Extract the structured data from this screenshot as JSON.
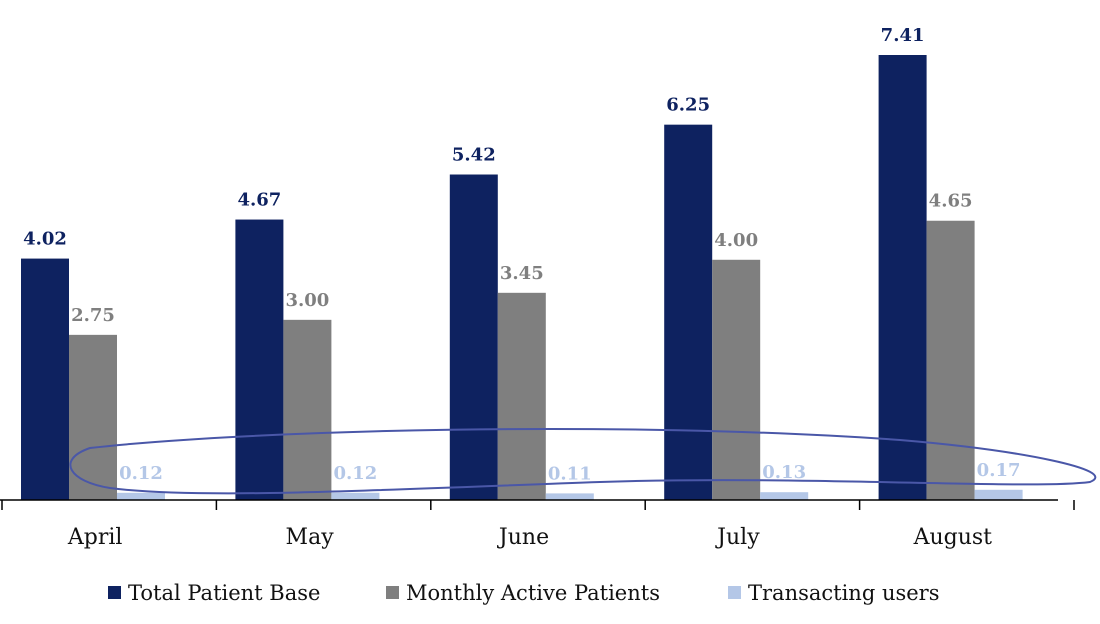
{
  "chart_data": {
    "type": "bar",
    "categories": [
      "April",
      "May",
      "June",
      "July",
      "August"
    ],
    "series": [
      {
        "name": "Total Patient Base",
        "values": [
          4.02,
          4.67,
          5.42,
          6.25,
          7.41
        ],
        "color": "#0e2260",
        "label_color": "#0e2260"
      },
      {
        "name": "Monthly Active Patients",
        "values": [
          2.75,
          3.0,
          3.45,
          4.0,
          4.65
        ],
        "color": "#7f7f7f",
        "label_color": "#7f7f7f"
      },
      {
        "name": "Transacting users",
        "values": [
          0.12,
          0.12,
          0.11,
          0.13,
          0.17
        ],
        "color": "#b4c7e7",
        "label_color": "#b4c7e7"
      }
    ],
    "value_labels": [
      [
        "4.02",
        "4.67",
        "5.42",
        "6.25",
        "7.41"
      ],
      [
        "2.75",
        "3.00",
        "3.45",
        "4.00",
        "4.65"
      ],
      [
        "0.12",
        "0.12",
        "0.11",
        "0.13",
        "0.17"
      ]
    ],
    "title": "",
    "xlabel": "",
    "ylabel": "",
    "ylim": [
      0,
      8
    ],
    "grid": false,
    "legend_position": "bottom",
    "annotation": {
      "shape": "ellipse",
      "color": "#4a57a8",
      "encloses_series": "Transacting users"
    }
  }
}
